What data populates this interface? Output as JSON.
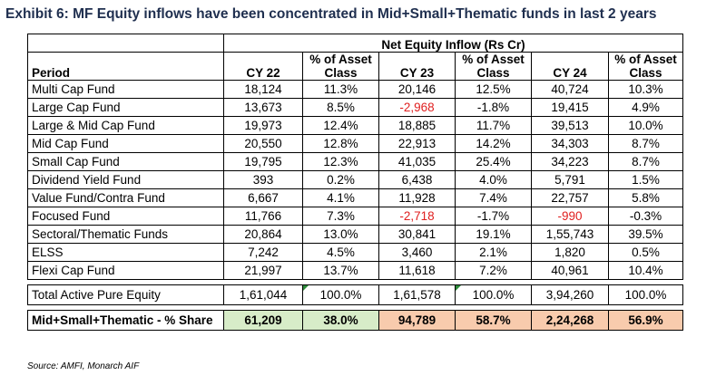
{
  "title": "Exhibit 6: MF Equity inflows have been concentrated in Mid+Small+Thematic funds in last 2 years",
  "header": {
    "group_label": "Net Equity Inflow (Rs Cr)",
    "period_label": "Period",
    "columns": [
      "CY 22",
      "% of Asset Class",
      "CY 23",
      "% of Asset Class",
      "CY 24",
      "% of Asset Class"
    ],
    "pct_line1": "% of Asset",
    "pct_line2": "Class"
  },
  "rows": [
    {
      "period": "Multi Cap Fund",
      "cy22": "18,124",
      "pct22": "11.3%",
      "cy23": "20,146",
      "pct23": "12.5%",
      "cy24": "40,724",
      "pct24": "10.3%"
    },
    {
      "period": "Large Cap Fund",
      "cy22": "13,673",
      "pct22": "8.5%",
      "cy23": "-2,968",
      "pct23": "-1.8%",
      "cy24": "19,415",
      "pct24": "4.9%"
    },
    {
      "period": "Large & Mid Cap Fund",
      "cy22": "19,973",
      "pct22": "12.4%",
      "cy23": "18,885",
      "pct23": "11.7%",
      "cy24": "39,513",
      "pct24": "10.0%"
    },
    {
      "period": "Mid Cap Fund",
      "cy22": "20,550",
      "pct22": "12.8%",
      "cy23": "22,913",
      "pct23": "14.2%",
      "cy24": "34,303",
      "pct24": "8.7%"
    },
    {
      "period": "Small Cap Fund",
      "cy22": "19,795",
      "pct22": "12.3%",
      "cy23": "41,035",
      "pct23": "25.4%",
      "cy24": "34,223",
      "pct24": "8.7%"
    },
    {
      "period": "Dividend Yield Fund",
      "cy22": "393",
      "pct22": "0.2%",
      "cy23": "6,438",
      "pct23": "4.0%",
      "cy24": "5,791",
      "pct24": "1.5%"
    },
    {
      "period": "Value Fund/Contra Fund",
      "cy22": "6,667",
      "pct22": "4.1%",
      "cy23": "11,928",
      "pct23": "7.4%",
      "cy24": "22,757",
      "pct24": "5.8%"
    },
    {
      "period": "Focused Fund",
      "cy22": "11,766",
      "pct22": "7.3%",
      "cy23": "-2,718",
      "pct23": "-1.7%",
      "cy24": "-990",
      "pct24": "-0.3%"
    },
    {
      "period": "Sectoral/Thematic Funds",
      "cy22": "20,864",
      "pct22": "13.0%",
      "cy23": "30,841",
      "pct23": "19.1%",
      "cy24": "1,55,743",
      "pct24": "39.5%"
    },
    {
      "period": "ELSS",
      "cy22": "7,242",
      "pct22": "4.5%",
      "cy23": "3,460",
      "pct23": "2.1%",
      "cy24": "1,820",
      "pct24": "0.5%"
    },
    {
      "period": "Flexi Cap Fund",
      "cy22": "21,997",
      "pct22": "13.7%",
      "cy23": "11,618",
      "pct23": "7.2%",
      "cy24": "40,961",
      "pct24": "10.4%"
    }
  ],
  "total": {
    "period": "Total Active Pure Equity",
    "cy22": "1,61,044",
    "pct22": "100.0%",
    "cy23": "1,61,578",
    "pct23": "100.0%",
    "cy24": "3,94,260",
    "pct24": "100.0%"
  },
  "share": {
    "period": "Mid+Small+Thematic - % Share",
    "cy22": "61,209",
    "pct22": "38.0%",
    "cy23": "94,789",
    "pct23": "58.7%",
    "cy24": "2,24,268",
    "pct24": "56.9%"
  },
  "colors": {
    "title": "#1f2f4f",
    "negative": "#e02020",
    "cy22_highlight": "#d7ecc8",
    "cy23_24_highlight": "#f8cbad",
    "comment_marker": "#2e8b3a"
  },
  "source": "Source: AMFI, Monarch AIF"
}
